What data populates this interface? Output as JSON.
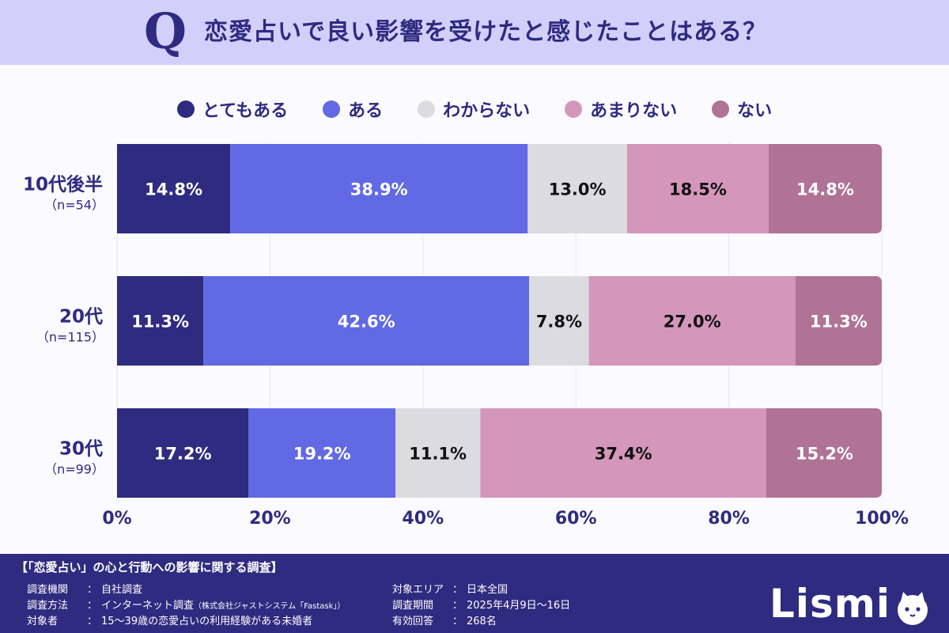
{
  "header": {
    "q_letter": "Q",
    "question": "恋愛占いで良い影響を受けたと感じたことはある？"
  },
  "legend": [
    {
      "label": "とてもある",
      "color": "#2e2b80"
    },
    {
      "label": "ある",
      "color": "#6169e4"
    },
    {
      "label": "わからない",
      "color": "#dcdbdf"
    },
    {
      "label": "あまりない",
      "color": "#d497bb"
    },
    {
      "label": "ない",
      "color": "#b07395"
    }
  ],
  "chart_data": {
    "type": "bar",
    "orientation": "horizontal",
    "stacked": true,
    "categories": [
      "10代後半",
      "20代",
      "30代"
    ],
    "category_sublabels": [
      "（n=54）",
      "（n=115）",
      "（n=99）"
    ],
    "series": [
      {
        "name": "とてもある",
        "values": [
          14.8,
          11.3,
          17.2
        ],
        "labels": [
          "14.8%",
          "11.3%",
          "17.2%"
        ],
        "color": "#2e2b80",
        "text_color": "#ffffff"
      },
      {
        "name": "ある",
        "values": [
          38.9,
          42.6,
          19.2
        ],
        "labels": [
          "38.9%",
          "42.6%",
          "19.2%"
        ],
        "color": "#6169e4",
        "text_color": "#ffffff"
      },
      {
        "name": "わからない",
        "values": [
          13.0,
          7.8,
          11.1
        ],
        "labels": [
          "13.0%",
          "7.8%",
          "11.1%"
        ],
        "color": "#dcdbdf",
        "text_color": "#111111"
      },
      {
        "name": "あまりない",
        "values": [
          18.5,
          27.0,
          37.4
        ],
        "labels": [
          "18.5%",
          "27.0%",
          "37.4%"
        ],
        "color": "#d497bb",
        "text_color": "#111111"
      },
      {
        "name": "ない",
        "values": [
          14.8,
          11.3,
          15.2
        ],
        "labels": [
          "14.8%",
          "11.3%",
          "15.2%"
        ],
        "color": "#b07395",
        "text_color": "#ffffff"
      }
    ],
    "xlim": [
      0,
      100
    ],
    "xticks": [
      "0%",
      "20%",
      "40%",
      "60%",
      "80%",
      "100%"
    ],
    "grid": true
  },
  "footer": {
    "title": "【「恋愛占い」の心と行動への影響に関する調査】",
    "left_rows": [
      {
        "key": "調査機関",
        "sep": "：",
        "value": "自社調査",
        "value_small": ""
      },
      {
        "key": "調査方法",
        "sep": "：",
        "value": "インターネット調査",
        "value_small": "（株式会社ジャストシステム「Fastask」）"
      },
      {
        "key": "対象者",
        "sep": "：",
        "value": "15～39歳の恋愛占いの利用経験がある未婚者",
        "value_small": ""
      }
    ],
    "right_rows": [
      {
        "key": "対象エリア",
        "sep": "：",
        "value": "日本全国"
      },
      {
        "key": "調査期間",
        "sep": "：",
        "value": "2025年4月9日～16日"
      },
      {
        "key": "有効回答",
        "sep": "：",
        "value": "268名"
      }
    ],
    "logo_text": "Lismi"
  }
}
